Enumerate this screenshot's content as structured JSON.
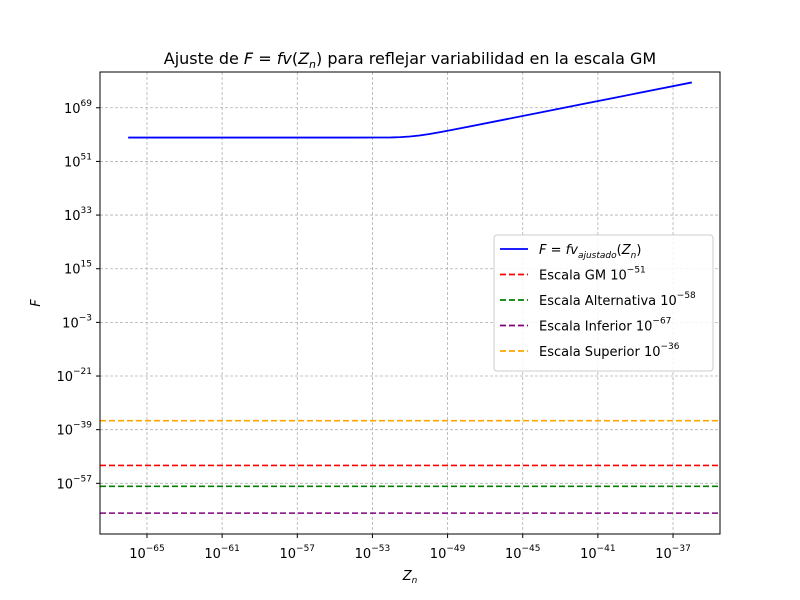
{
  "chart_data": {
    "type": "line",
    "title": {
      "prefix": "Ajuste de ",
      "math_lhs": "F",
      "equals": " = ",
      "math_rhs": "fv",
      "paren_open": "(",
      "arg": "Z",
      "arg_sub": "n",
      "paren_close": ")",
      "suffix": " para reflejar variabilidad en la escala GM"
    },
    "xlabel": {
      "main": "Z",
      "sub": "n"
    },
    "ylabel": "F",
    "xscale": "log",
    "yscale": "log",
    "xlim_exponent": [
      -67.5,
      -34.5
    ],
    "ylim_exponent": [
      -74,
      81
    ],
    "grid": true,
    "x_ticks": [
      {
        "base": "10",
        "exp": "−65",
        "value": -65
      },
      {
        "base": "10",
        "exp": "−61",
        "value": -61
      },
      {
        "base": "10",
        "exp": "−57",
        "value": -57
      },
      {
        "base": "10",
        "exp": "−53",
        "value": -53
      },
      {
        "base": "10",
        "exp": "−49",
        "value": -49
      },
      {
        "base": "10",
        "exp": "−45",
        "value": -45
      },
      {
        "base": "10",
        "exp": "−41",
        "value": -41
      },
      {
        "base": "10",
        "exp": "−37",
        "value": -37
      }
    ],
    "y_ticks": [
      {
        "base": "10",
        "exp": "69",
        "value": 69
      },
      {
        "base": "10",
        "exp": "51",
        "value": 51
      },
      {
        "base": "10",
        "exp": "33",
        "value": 33
      },
      {
        "base": "10",
        "exp": "15",
        "value": 15
      },
      {
        "base": "10",
        "exp": "−3",
        "value": -3
      },
      {
        "base": "10",
        "exp": "−21",
        "value": -21
      },
      {
        "base": "10",
        "exp": "−39",
        "value": -39
      },
      {
        "base": "10",
        "exp": "−57",
        "value": -57
      }
    ],
    "curve": {
      "color": "#0000ff",
      "x_log10": [
        -66,
        -62,
        -58,
        -54,
        -52,
        -51.5,
        -51,
        -50.5,
        -50,
        -49.5,
        -49,
        -48,
        -46,
        -44,
        -42,
        -40,
        -38,
        -36
      ],
      "y_log10": [
        59,
        59,
        59,
        59,
        59.05,
        59.15,
        59.35,
        59.7,
        60.15,
        60.7,
        61.3,
        62.5,
        65,
        67.5,
        70,
        72.5,
        75,
        77.5
      ]
    },
    "hlines": [
      {
        "y_log10": -51,
        "color": "#ff0000"
      },
      {
        "y_log10": -58,
        "color": "#008000"
      },
      {
        "y_log10": -67,
        "color": "#800080"
      },
      {
        "y_log10": -36,
        "color": "#ffa500"
      }
    ],
    "legend": {
      "placement": "center-right",
      "entries": [
        {
          "kind": "curve",
          "color": "#0000ff",
          "lhs": "F",
          "eq": " = ",
          "fn": "fv",
          "fn_sub": "ajustado",
          "po": "(",
          "arg": "Z",
          "arg_sub": "n",
          "pc": ")"
        },
        {
          "kind": "hline",
          "color": "#ff0000",
          "text": "Escala GM ",
          "base": "10",
          "exp": "−51"
        },
        {
          "kind": "hline",
          "color": "#008000",
          "text": "Escala Alternativa ",
          "base": "10",
          "exp": "−58"
        },
        {
          "kind": "hline",
          "color": "#800080",
          "text": "Escala Inferior ",
          "base": "10",
          "exp": "−67"
        },
        {
          "kind": "hline",
          "color": "#ffa500",
          "text": "Escala Superior ",
          "base": "10",
          "exp": "−36"
        }
      ]
    }
  }
}
